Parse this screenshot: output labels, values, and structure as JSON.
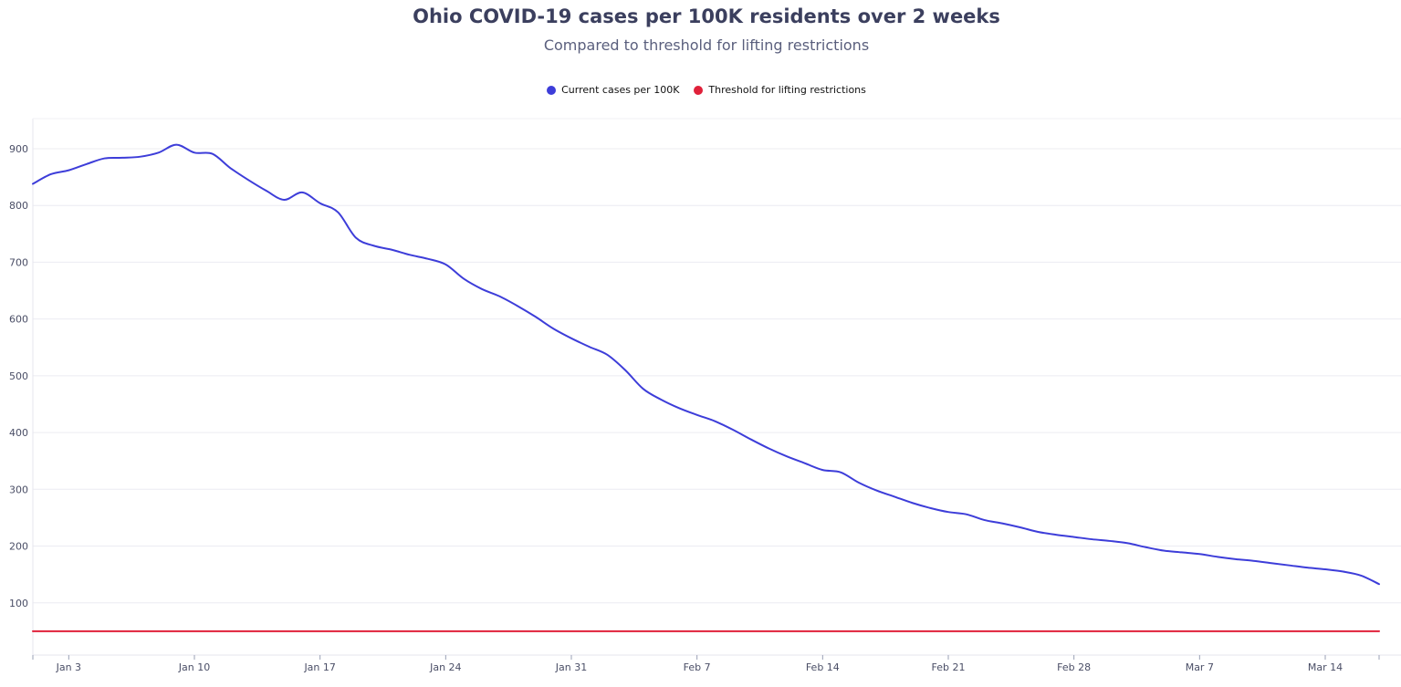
{
  "title": "Ohio COVID-19 cases per 100K residents over 2 weeks",
  "subtitle": "Compared to threshold for lifting restrictions",
  "legend": [
    {
      "label": "Current cases per 100K",
      "color": "#3d3dd9"
    },
    {
      "label": "Threshold for lifting restrictions",
      "color": "#e0213a"
    }
  ],
  "chart_data": {
    "type": "line",
    "title": "Ohio COVID-19 cases per 100K residents over 2 weeks",
    "subtitle": "Compared to threshold for lifting restrictions",
    "xlabel": "",
    "ylabel": "",
    "x_ticks": [
      "Jan 3",
      "Jan 10",
      "Jan 17",
      "Jan 24",
      "Jan 31",
      "Feb 7",
      "Feb 14",
      "Feb 21",
      "Feb 28",
      "Mar 7",
      "Mar 14"
    ],
    "y_ticks": [
      100,
      200,
      300,
      400,
      500,
      600,
      700,
      800,
      900
    ],
    "xlim": [
      "2021-01-01",
      "2021-03-17"
    ],
    "ylim": [
      8,
      953
    ],
    "grid": true,
    "legend_position": "top-center",
    "series": [
      {
        "name": "Current cases per 100K",
        "color": "#3d3dd9",
        "x": [
          "2021-01-01",
          "2021-01-02",
          "2021-01-03",
          "2021-01-04",
          "2021-01-05",
          "2021-01-06",
          "2021-01-07",
          "2021-01-08",
          "2021-01-09",
          "2021-01-10",
          "2021-01-11",
          "2021-01-12",
          "2021-01-13",
          "2021-01-14",
          "2021-01-15",
          "2021-01-16",
          "2021-01-17",
          "2021-01-18",
          "2021-01-19",
          "2021-01-20",
          "2021-01-21",
          "2021-01-22",
          "2021-01-23",
          "2021-01-24",
          "2021-01-25",
          "2021-01-26",
          "2021-01-27",
          "2021-01-28",
          "2021-01-29",
          "2021-01-30",
          "2021-01-31",
          "2021-02-01",
          "2021-02-02",
          "2021-02-03",
          "2021-02-04",
          "2021-02-05",
          "2021-02-06",
          "2021-02-07",
          "2021-02-08",
          "2021-02-09",
          "2021-02-10",
          "2021-02-11",
          "2021-02-12",
          "2021-02-13",
          "2021-02-14",
          "2021-02-15",
          "2021-02-16",
          "2021-02-17",
          "2021-02-18",
          "2021-02-19",
          "2021-02-20",
          "2021-02-21",
          "2021-02-22",
          "2021-02-23",
          "2021-02-24",
          "2021-02-25",
          "2021-02-26",
          "2021-02-27",
          "2021-02-28",
          "2021-03-01",
          "2021-03-02",
          "2021-03-03",
          "2021-03-04",
          "2021-03-05",
          "2021-03-06",
          "2021-03-07",
          "2021-03-08",
          "2021-03-09",
          "2021-03-10",
          "2021-03-11",
          "2021-03-12",
          "2021-03-13",
          "2021-03-14",
          "2021-03-15",
          "2021-03-16",
          "2021-03-17"
        ],
        "y": [
          838,
          855,
          862,
          873,
          883,
          884,
          886,
          893,
          907,
          893,
          891,
          866,
          845,
          826,
          810,
          823,
          804,
          788,
          743,
          729,
          722,
          713,
          706,
          696,
          671,
          653,
          640,
          623,
          604,
          583,
          566,
          551,
          537,
          510,
          477,
          458,
          443,
          431,
          420,
          405,
          388,
          372,
          358,
          346,
          334,
          330,
          312,
          298,
          287,
          276,
          267,
          260,
          256,
          246,
          240,
          233,
          225,
          220,
          216,
          212,
          209,
          205,
          198,
          192,
          189,
          186,
          181,
          177,
          174,
          170,
          166,
          162,
          159,
          155,
          148,
          133
        ]
      },
      {
        "name": "Threshold for lifting restrictions",
        "color": "#e0213a",
        "x": [
          "2021-01-01",
          "2021-03-17"
        ],
        "y": [
          50,
          50
        ]
      }
    ]
  }
}
